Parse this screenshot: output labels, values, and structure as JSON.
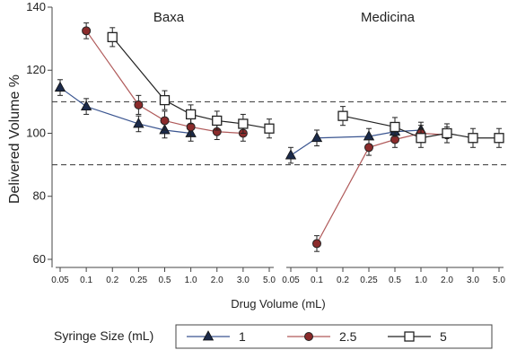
{
  "chart_data": {
    "type": "line",
    "ylabel": "Delivered Volume %",
    "xlabel": "Drug Volume (mL)",
    "ylim": [
      58,
      140
    ],
    "yticks": [
      60,
      80,
      100,
      120,
      140
    ],
    "reference_lines": [
      90,
      110
    ],
    "legend": {
      "title": "Syringe Size (mL)",
      "placement": "bottom"
    },
    "panels": [
      {
        "title": "Baxa",
        "categories": [
          "0.05",
          "0.1",
          "0.2",
          "0.25",
          "0.5",
          "1.0",
          "2.0",
          "3.0",
          "5.0"
        ],
        "series": [
          {
            "name": "1",
            "marker": "triangle",
            "color": "#1c2b4a",
            "line_color": "#3a5590",
            "x": [
              "0.05",
              "0.1",
              "0.25",
              "0.5",
              "1.0"
            ],
            "y": [
              114.5,
              108.5,
              103.0,
              101.0,
              100.0
            ],
            "err": [
              2.5,
              2.5,
              2.5,
              2.5,
              2.5
            ]
          },
          {
            "name": "2.5",
            "marker": "circle",
            "color": "#8b2b2b",
            "line_color": "#b05a5a",
            "x": [
              "0.1",
              "0.25",
              "0.5",
              "1.0",
              "2.0",
              "3.0"
            ],
            "y": [
              132.5,
              109.0,
              104.0,
              102.0,
              100.5,
              100.0
            ],
            "err": [
              2.5,
              3.0,
              3.0,
              3.0,
              2.5,
              2.5
            ]
          },
          {
            "name": "5",
            "marker": "square",
            "color": "#222222",
            "line_color": "#222222",
            "x": [
              "0.2",
              "0.5",
              "1.0",
              "2.0",
              "3.0",
              "5.0"
            ],
            "y": [
              130.5,
              110.5,
              106.0,
              104.0,
              103.0,
              101.5
            ],
            "err": [
              3.0,
              3.0,
              3.0,
              3.0,
              3.0,
              3.0
            ]
          }
        ]
      },
      {
        "title": "Medicina",
        "categories": [
          "0.05",
          "0.1",
          "0.2",
          "0.25",
          "0.5",
          "1.0",
          "2.0",
          "3.0",
          "5.0"
        ],
        "series": [
          {
            "name": "1",
            "marker": "triangle",
            "color": "#1c2b4a",
            "line_color": "#3a5590",
            "x": [
              "0.05",
              "0.1",
              "0.25",
              "0.5",
              "1.0"
            ],
            "y": [
              93.0,
              98.5,
              99.0,
              100.5,
              101.0
            ],
            "err": [
              2.5,
              2.5,
              2.5,
              2.5,
              2.5
            ]
          },
          {
            "name": "2.5",
            "marker": "circle",
            "color": "#8b2b2b",
            "line_color": "#b05a5a",
            "x": [
              "0.1",
              "0.25",
              "0.5",
              "1.0",
              "2.0"
            ],
            "y": [
              65.0,
              95.5,
              98.0,
              100.0,
              99.5
            ],
            "err": [
              2.5,
              2.5,
              2.5,
              2.5,
              2.5
            ]
          },
          {
            "name": "5",
            "marker": "square",
            "color": "#222222",
            "line_color": "#222222",
            "x": [
              "0.2",
              "0.5",
              "1.0",
              "2.0",
              "3.0",
              "5.0"
            ],
            "y": [
              105.5,
              102.0,
              98.5,
              100.0,
              98.5,
              98.5
            ],
            "err": [
              3.0,
              3.0,
              3.0,
              3.0,
              3.0,
              3.0
            ]
          }
        ]
      }
    ]
  }
}
